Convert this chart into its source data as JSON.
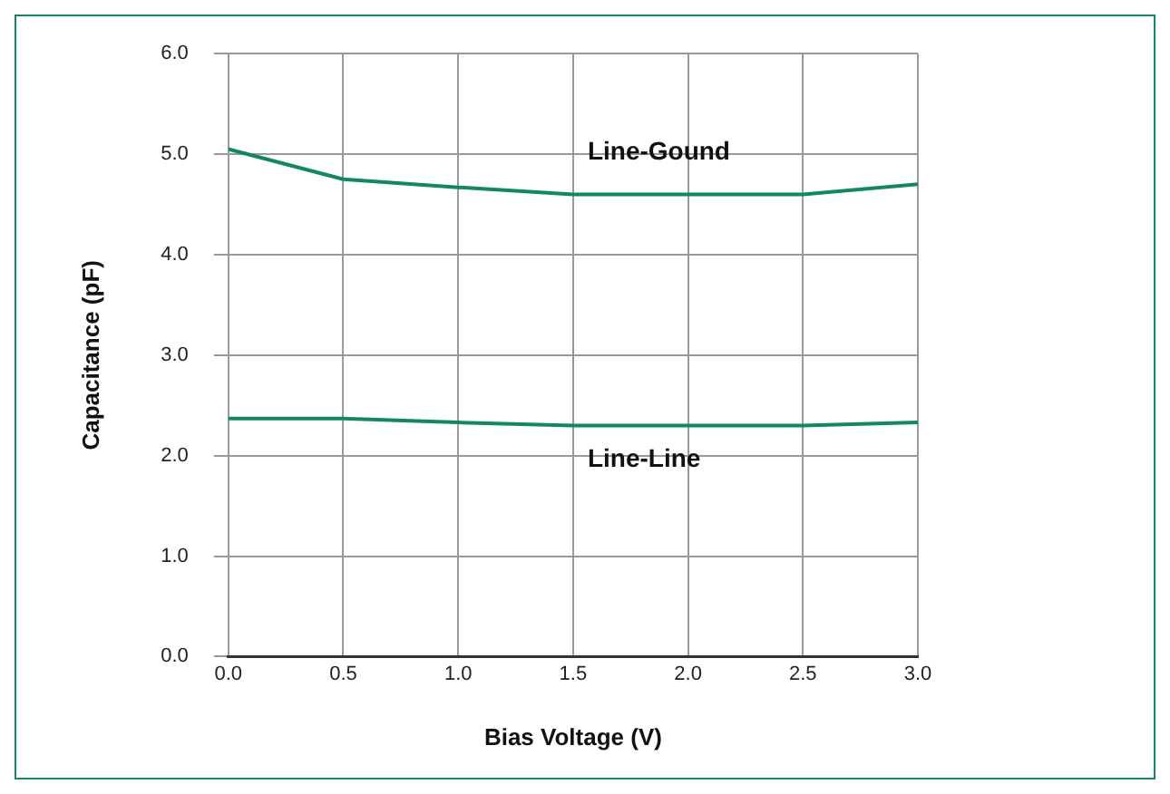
{
  "chart_data": {
    "type": "line",
    "xlabel": "Bias Voltage (V)",
    "ylabel": "Capacitance (pF)",
    "x": [
      0,
      0.5,
      1,
      1.5,
      2,
      2.5,
      3
    ],
    "series": [
      {
        "name": "Line-Gound",
        "color": "#13875f",
        "values": [
          5.05,
          4.75,
          4.67,
          4.6,
          4.6,
          4.6,
          4.7
        ]
      },
      {
        "name": "Line-Line",
        "color": "#13875f",
        "values": [
          2.37,
          2.37,
          2.33,
          2.3,
          2.3,
          2.3,
          2.33
        ]
      }
    ],
    "xlim": [
      0,
      3
    ],
    "xticks": [
      {
        "value": 0,
        "label": "0.0"
      },
      {
        "value": 0.5,
        "label": "0.5"
      },
      {
        "value": 1,
        "label": "1.0"
      },
      {
        "value": 1.5,
        "label": "1.5"
      },
      {
        "value": 2,
        "label": "2.0"
      },
      {
        "value": 2.5,
        "label": "2.5"
      },
      {
        "value": 3,
        "label": "3.0"
      }
    ],
    "ylim": [
      0,
      6
    ],
    "yticks": [
      {
        "value": 0,
        "label": "0.0"
      },
      {
        "value": 1,
        "label": "1.0"
      },
      {
        "value": 2,
        "label": "2.0"
      },
      {
        "value": 3,
        "label": "3.0"
      },
      {
        "value": 4,
        "label": "4.0"
      },
      {
        "value": 5,
        "label": "5.0"
      },
      {
        "value": 6,
        "label": "6.0"
      }
    ],
    "grid": true,
    "legend": false,
    "marker": "none",
    "line_style": "solid"
  }
}
